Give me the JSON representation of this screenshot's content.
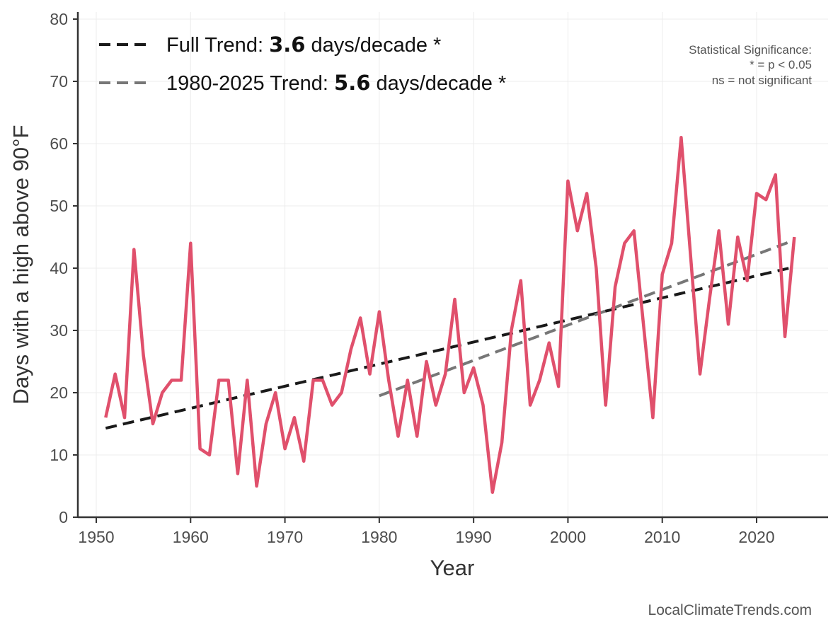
{
  "chart_data": {
    "type": "line",
    "xlabel": "Year",
    "ylabel": "Days with a high above 90°F",
    "xlim": [
      1947,
      2028
    ],
    "ylim": [
      0,
      80
    ],
    "x_ticks": [
      1950,
      1960,
      1970,
      1980,
      1990,
      2000,
      2010,
      2020
    ],
    "y_ticks": [
      0,
      10,
      20,
      30,
      40,
      50,
      60,
      70,
      80
    ],
    "grid": true,
    "series": [
      {
        "name": "Days above 90°F",
        "color": "#e0506c",
        "x": [
          1951,
          1952,
          1953,
          1954,
          1955,
          1956,
          1957,
          1958,
          1959,
          1960,
          1961,
          1962,
          1963,
          1964,
          1965,
          1966,
          1967,
          1968,
          1969,
          1970,
          1971,
          1972,
          1973,
          1974,
          1975,
          1976,
          1977,
          1978,
          1979,
          1980,
          1981,
          1982,
          1983,
          1984,
          1985,
          1986,
          1987,
          1988,
          1989,
          1990,
          1991,
          1992,
          1993,
          1994,
          1995,
          1996,
          1997,
          1998,
          1999,
          2000,
          2001,
          2002,
          2003,
          2004,
          2005,
          2006,
          2007,
          2008,
          2009,
          2010,
          2011,
          2012,
          2013,
          2014,
          2015,
          2016,
          2017,
          2018,
          2019,
          2020,
          2021,
          2022,
          2023,
          2024
        ],
        "values": [
          16,
          23,
          16,
          43,
          26,
          15,
          20,
          22,
          22,
          44,
          11,
          10,
          22,
          22,
          7,
          22,
          5,
          15,
          20,
          11,
          16,
          9,
          22,
          22,
          18,
          20,
          27,
          32,
          23,
          33,
          22,
          13,
          22,
          13,
          25,
          18,
          23,
          35,
          20,
          24,
          18,
          4,
          12,
          30,
          38,
          18,
          22,
          28,
          21,
          54,
          46,
          52,
          40,
          18,
          37,
          44,
          46,
          31,
          16,
          39,
          44,
          61,
          42,
          23,
          35,
          46,
          31,
          45,
          38,
          52,
          51,
          55,
          29,
          45
        ]
      }
    ],
    "trends": [
      {
        "name": "Full Trend",
        "label_prefix": "Full Trend: ",
        "value": "3.6",
        "label_suffix": " days/decade *",
        "color": "#1a1a1a",
        "x": [
          1951,
          2024
        ],
        "y": [
          14.3,
          40.2
        ]
      },
      {
        "name": "1980-2025 Trend",
        "label_prefix": "1980-2025 Trend: ",
        "value": "5.6",
        "label_suffix": " days/decade *",
        "color": "#777777",
        "x": [
          1980,
          2024
        ],
        "y": [
          19.5,
          44.5
        ]
      }
    ],
    "legend_position": "top-left",
    "annotations": {
      "significance": [
        "Statistical Significance:",
        "* = p < 0.05",
        "ns = not significant"
      ],
      "source": "LocalClimateTrends.com"
    }
  }
}
